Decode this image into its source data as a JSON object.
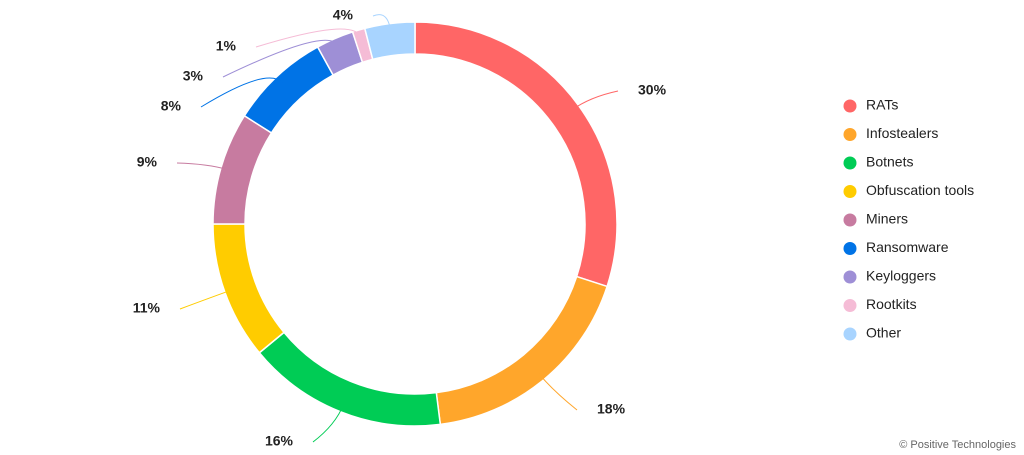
{
  "chart_data": {
    "type": "donut",
    "categories": [
      "RATs",
      "Infostealers",
      "Botnets",
      "Obfuscation tools",
      "Miners",
      "Ransomware",
      "Keyloggers",
      "Rootkits",
      "Other"
    ],
    "values": [
      30,
      18,
      16,
      11,
      9,
      8,
      3,
      1,
      4
    ],
    "value_labels": [
      "30%",
      "18%",
      "16%",
      "11%",
      "9%",
      "8%",
      "3%",
      "1%",
      "4%"
    ],
    "colors": [
      "#ff6666",
      "#ffa62b",
      "#00cc55",
      "#ffcc00",
      "#c77ba0",
      "#0073e6",
      "#9e8fd6",
      "#f5bcd6",
      "#a8d4ff"
    ],
    "legend": "right",
    "credit": "© Positive Technologies"
  }
}
